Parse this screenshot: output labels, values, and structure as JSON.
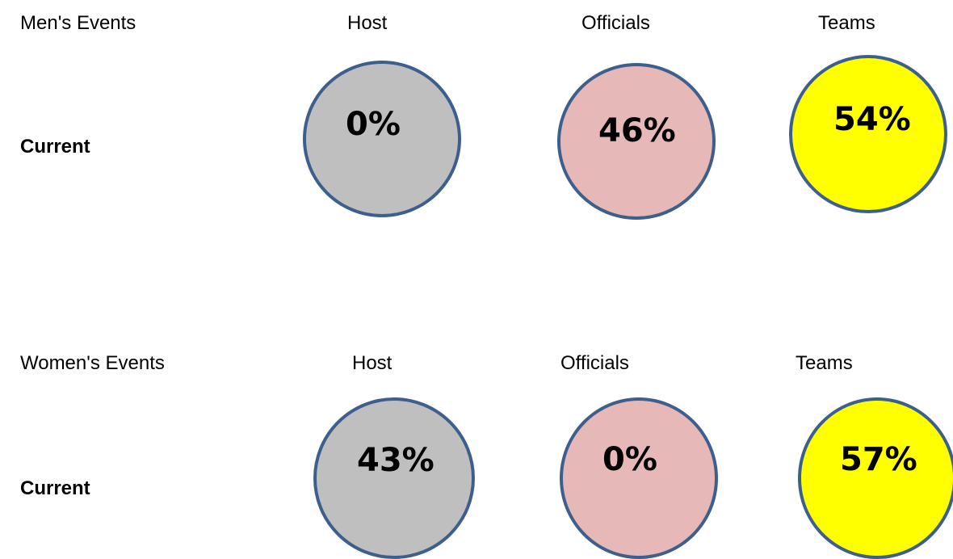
{
  "colors": {
    "host": "#bfbfbf",
    "officials": "#e6b8b7",
    "teams": "#ffff00",
    "outline": "#3d5f8e"
  },
  "men": {
    "title": "Men's Events",
    "row_label": "Current",
    "headers": {
      "host": "Host",
      "officials": "Officials",
      "teams": "Teams"
    },
    "values": {
      "host": "0%",
      "officials": "46%",
      "teams": "54%"
    }
  },
  "women": {
    "title": "Women's Events",
    "row_label": "Current",
    "headers": {
      "host": "Host",
      "officials": "Officials",
      "teams": "Teams"
    },
    "values": {
      "host": "43%",
      "officials": "0%",
      "teams": "57%"
    }
  }
}
